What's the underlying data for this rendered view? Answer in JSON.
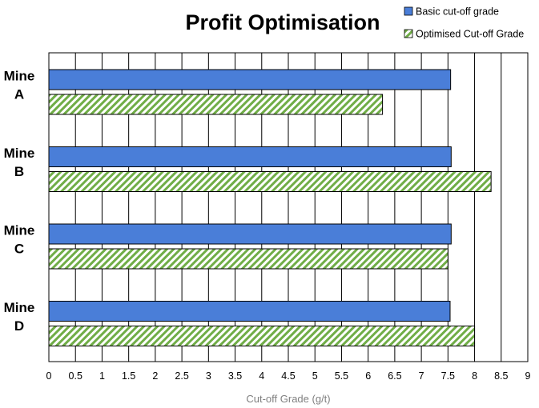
{
  "chart_data": {
    "type": "bar",
    "orientation": "horizontal",
    "title": "Profit Optimisation",
    "categories": [
      [
        "Mine",
        "A"
      ],
      [
        "Mine",
        "B"
      ],
      [
        "Mine",
        "C"
      ],
      [
        "Mine",
        "D"
      ]
    ],
    "series": [
      {
        "name": "Basic cut-off grade",
        "values": [
          7.55,
          7.56,
          7.56,
          7.54
        ],
        "color": "#4a7ed8",
        "pattern": "solid"
      },
      {
        "name": "Optimised Cut-off Grade",
        "values": [
          6.27,
          8.31,
          7.5,
          8.0
        ],
        "color": "#70ad47",
        "pattern": "diagonal-stripes"
      }
    ],
    "xlabel": "Cut-off Grade (g/t)",
    "ylabel": "",
    "xlim": [
      0,
      9
    ],
    "xticks": [
      "0",
      "0.5",
      "1",
      "1.5",
      "2",
      "2.5",
      "3",
      "3.5",
      "4",
      "4.5",
      "5",
      "5.5",
      "6",
      "6.5",
      "7",
      "7.5",
      "8",
      "8.5",
      "9"
    ],
    "grid": true,
    "legend_position": "top-right"
  }
}
